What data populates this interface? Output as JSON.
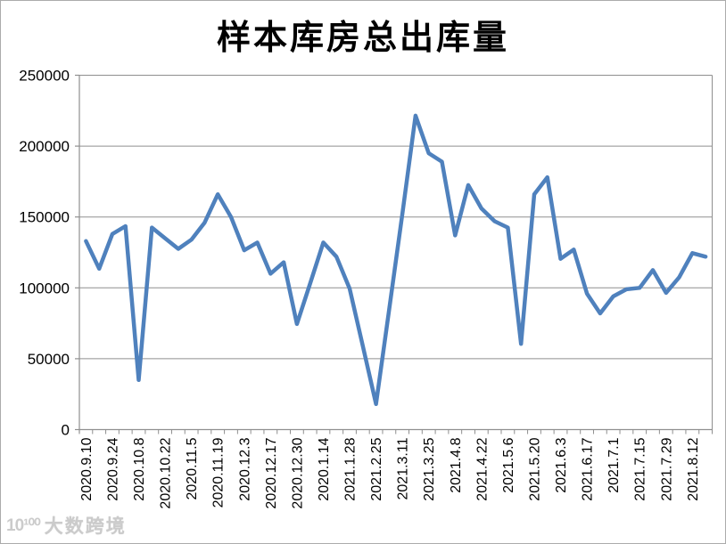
{
  "window": {
    "background": "#ffffff",
    "border_color": "#ababab"
  },
  "chart_style": {
    "line_color": "#4F81BD",
    "line_width": 4.5,
    "grid_color": "#8f8f8f",
    "axis_color": "#8f8f8f",
    "text_color": "#000000",
    "y_label_font_size": 17,
    "x_label_font_size": 16
  },
  "watermark": {
    "logo": "10¹⁰⁰",
    "text": "大数跨境"
  },
  "chart_data": {
    "type": "line",
    "title": "样本库房总出库量",
    "xlabel": "",
    "ylabel": "",
    "ylim": [
      0,
      250000
    ],
    "y_ticks": [
      0,
      50000,
      100000,
      150000,
      200000,
      250000
    ],
    "grid": true,
    "legend": false,
    "label_every": 2,
    "x_labels": [
      "2020.9.10",
      "2020.9.24",
      "2020.10.8",
      "2020.10.22",
      "2020.11.5",
      "2020.11.19",
      "2020.12.3",
      "2020.12.17",
      "2020.12.30",
      "2020.1.14",
      "2021.1.28",
      "2021.2.25",
      "2021.3.11",
      "2021.3.25",
      "2021.4.8",
      "2021.4.22",
      "2021.5.6",
      "2021.5.20",
      "2021.6.3",
      "2021.6.17",
      "2021.7.1",
      "2021.7.15",
      "2021.7.29",
      "2021.8.12"
    ],
    "values": [
      133000,
      113500,
      138000,
      143500,
      35000,
      142500,
      135000,
      127500,
      134000,
      146000,
      166000,
      150000,
      126500,
      132000,
      110000,
      118000,
      74500,
      103000,
      132000,
      122000,
      99500,
      59000,
      18000,
      85000,
      152000,
      221500,
      195000,
      189000,
      137000,
      172500,
      156000,
      147000,
      142500,
      60500,
      166000,
      178000,
      120500,
      127000,
      96000,
      82000,
      94000,
      99000,
      100000,
      112500,
      96500,
      107500,
      124500,
      122000
    ]
  }
}
